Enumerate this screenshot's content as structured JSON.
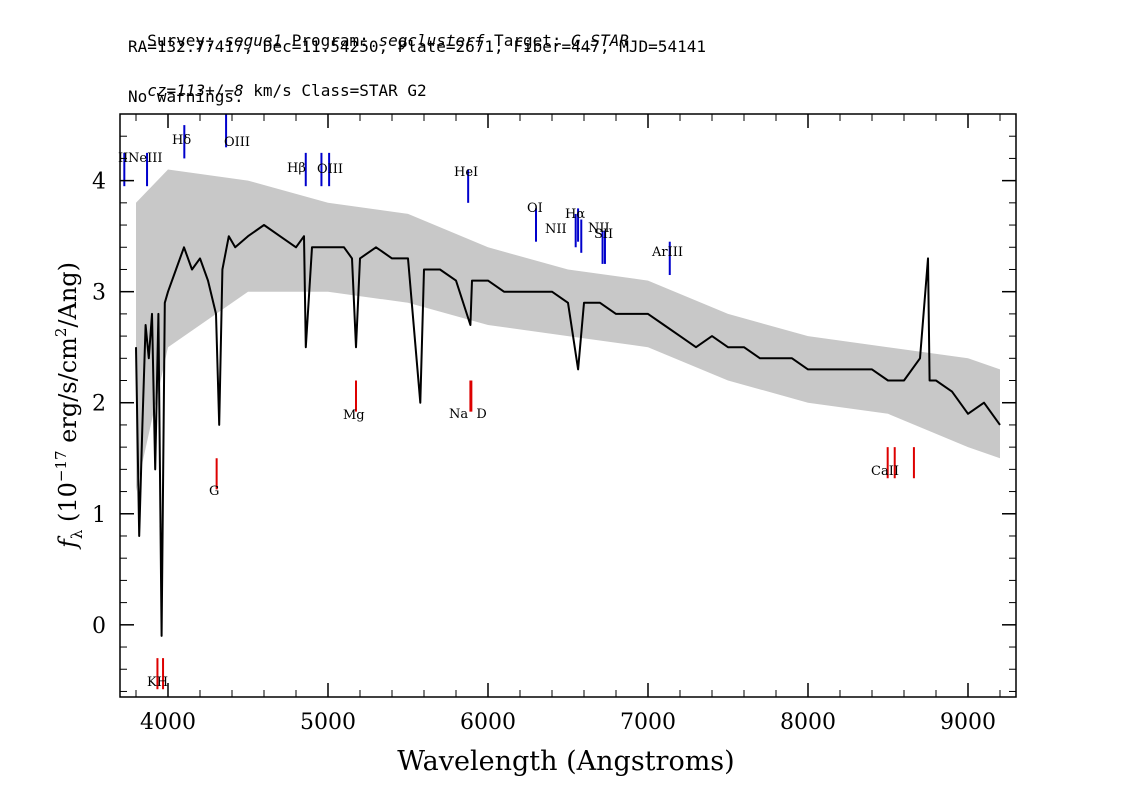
{
  "header": {
    "line1": {
      "survey_key": "Survey: ",
      "survey": "segue1",
      "program_key": " Program: ",
      "program": "segclusterf",
      "target_key": " Target: ",
      "target": "G_STAR"
    },
    "line2": "RA=132.77417, Dec=11.54250, Plate=2671, Fiber=447, MJD=54141",
    "line3": {
      "cz_label": "cz",
      "cz_eq": "=",
      "cz_value": "113",
      "cz_pm": "+/−",
      "cz_err": "8",
      "cz_rest": " km/s Class=STAR G2"
    },
    "line4": "No warnings."
  },
  "chart_data": {
    "type": "line",
    "title": "",
    "xlabel": "Wavelength (Angstroms)",
    "ylabel": "f_λ (10^-17 erg/s/cm^2/Ang)",
    "ylabel_parts": {
      "f": "f",
      "lambda": "λ",
      "pre": " (10",
      "exp1": "−17",
      "mid": " erg/s/cm",
      "exp2": "2",
      "post": "/Ang)"
    },
    "xlim": [
      3700,
      9300
    ],
    "ylim": [
      -0.65,
      4.6
    ],
    "xticks": [
      4000,
      5000,
      6000,
      7000,
      8000,
      9000
    ],
    "yticks": [
      0,
      1,
      2,
      3,
      4
    ],
    "xtick_labels": [
      "4000",
      "5000",
      "6000",
      "7000",
      "8000",
      "9000"
    ],
    "ytick_labels": [
      "0",
      "1",
      "2",
      "3",
      "4"
    ],
    "series": [
      {
        "role": "flux",
        "color": "#000000",
        "x": [
          3800,
          3820,
          3840,
          3860,
          3880,
          3900,
          3920,
          3940,
          3960,
          3980,
          4000,
          4050,
          4100,
          4150,
          4200,
          4250,
          4300,
          4320,
          4340,
          4380,
          4420,
          4500,
          4600,
          4700,
          4800,
          4850,
          4861,
          4900,
          5000,
          5100,
          5150,
          5175,
          5200,
          5300,
          5400,
          5500,
          5577,
          5600,
          5700,
          5800,
          5890,
          5900,
          6000,
          6100,
          6200,
          6300,
          6400,
          6500,
          6563,
          6600,
          6700,
          6800,
          6900,
          7000,
          7100,
          7200,
          7300,
          7400,
          7500,
          7600,
          7700,
          7800,
          7900,
          8000,
          8100,
          8200,
          8300,
          8400,
          8500,
          8600,
          8700,
          8750,
          8760,
          8800,
          8900,
          9000,
          9100,
          9200
        ],
        "y": [
          2.5,
          0.8,
          1.8,
          2.7,
          2.4,
          2.8,
          1.4,
          2.8,
          -0.1,
          2.9,
          3.0,
          3.2,
          3.4,
          3.2,
          3.3,
          3.1,
          2.8,
          1.8,
          3.2,
          3.5,
          3.4,
          3.5,
          3.6,
          3.5,
          3.4,
          3.5,
          2.5,
          3.4,
          3.4,
          3.4,
          3.3,
          2.5,
          3.3,
          3.4,
          3.3,
          3.3,
          2.0,
          3.2,
          3.2,
          3.1,
          2.7,
          3.1,
          3.1,
          3.0,
          3.0,
          3.0,
          3.0,
          2.9,
          2.3,
          2.9,
          2.9,
          2.8,
          2.8,
          2.8,
          2.7,
          2.6,
          2.5,
          2.6,
          2.5,
          2.5,
          2.4,
          2.4,
          2.4,
          2.3,
          2.3,
          2.3,
          2.3,
          2.3,
          2.2,
          2.2,
          2.4,
          3.3,
          2.2,
          2.2,
          2.1,
          1.9,
          2.0,
          1.8
        ]
      },
      {
        "role": "error band",
        "color": "#c8c8c8",
        "x": [
          3800,
          4000,
          4500,
          5000,
          5500,
          6000,
          6500,
          7000,
          7500,
          8000,
          8500,
          9000,
          9200
        ],
        "y_low": [
          1.2,
          2.5,
          3.0,
          3.0,
          2.9,
          2.7,
          2.6,
          2.5,
          2.2,
          2.0,
          1.9,
          1.6,
          1.5
        ],
        "y_high": [
          3.8,
          4.1,
          4.0,
          3.8,
          3.7,
          3.4,
          3.2,
          3.1,
          2.8,
          2.6,
          2.5,
          2.4,
          2.3
        ]
      }
    ],
    "emission_lines": [
      {
        "label": "II",
        "x": 3727,
        "y": 3.95
      },
      {
        "label": "NeIII",
        "x": 3869,
        "y": 3.95
      },
      {
        "label": "Hδ",
        "x": 4102,
        "y": 4.2
      },
      {
        "label": "OIII",
        "x": 4363,
        "y": 4.3
      },
      {
        "label": "Hβ",
        "x": 4861,
        "y": 3.95
      },
      {
        "label": "OIII",
        "x": 4959,
        "y": 3.95
      },
      {
        "label": "OIII",
        "x": 5007,
        "y": 3.95
      },
      {
        "label": "HeI",
        "x": 5876,
        "y": 3.8
      },
      {
        "label": "OI",
        "x": 6300,
        "y": 3.45
      },
      {
        "label": "NII",
        "x": 6548,
        "y": 3.4
      },
      {
        "label": "Hα",
        "x": 6563,
        "y": 3.45
      },
      {
        "label": "NII",
        "x": 6583,
        "y": 3.35
      },
      {
        "label": "SII",
        "x": 6716,
        "y": 3.25
      },
      {
        "label": "SII",
        "x": 6731,
        "y": 3.25
      },
      {
        "label": "ArIII",
        "x": 7136,
        "y": 3.15
      }
    ],
    "absorption_lines": [
      {
        "label": "K",
        "x": 3934,
        "y": -0.3
      },
      {
        "label": "H",
        "x": 3969,
        "y": -0.3
      },
      {
        "label": "G",
        "x": 4304,
        "y": 1.5
      },
      {
        "label": "Mg",
        "x": 5175,
        "y": 2.2
      },
      {
        "label": "Na",
        "x": 5890,
        "y": 2.2
      },
      {
        "label": "D",
        "x": 5896,
        "y": 2.2
      },
      {
        "label": "CaII",
        "x": 8498,
        "y": 1.6
      },
      {
        "label": "CaII",
        "x": 8542,
        "y": 1.6
      },
      {
        "label": "CaII",
        "x": 8662,
        "y": 1.6
      }
    ],
    "line_label_text": {
      "OII": "II",
      "NeIII": "NeIII",
      "Hdelta": "Hδ",
      "OIII_a": "OIII",
      "Hbeta": "Hβ",
      "OIII_b": "OIII",
      "HeI": "HeI",
      "OI": "OI",
      "NII_a": "NII",
      "Halpha": "Hα",
      "NII_b": "NII",
      "SII": "SII",
      "ArIII": "ArIII",
      "KH": "KH",
      "G": "G",
      "Mg": "Mg",
      "NaD": "Na  D",
      "CaII": "CaII"
    },
    "colors": {
      "emission": "#0000cc",
      "absorption": "#dd0000",
      "flux": "#000000",
      "error": "#c8c8c8"
    }
  }
}
